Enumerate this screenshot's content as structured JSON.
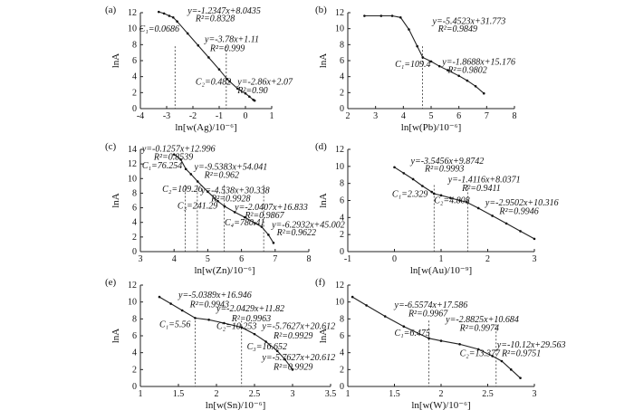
{
  "chart_data": [
    {
      "type": "scatter",
      "panel_label": "(a)",
      "xlabel": "ln[w(Ag)/10⁻⁶]",
      "ylabel": "lnA",
      "xlim": [
        -4,
        1
      ],
      "ylim": [
        0,
        12
      ],
      "xticks": [
        -4,
        -3,
        -2,
        -1,
        0,
        1
      ],
      "yticks": [
        0,
        2,
        4,
        6,
        8,
        10,
        12
      ],
      "series": [
        {
          "x": [
            -3.3,
            -3.1,
            -2.9,
            -2.75,
            -2.6,
            -2.2,
            -1.8,
            -1.4,
            -1.0,
            -0.7,
            -0.6,
            -0.3,
            0.0,
            0.15,
            0.3,
            0.35
          ],
          "y": [
            12.1,
            11.9,
            11.6,
            11.4,
            10.9,
            9.4,
            7.9,
            6.4,
            4.9,
            3.7,
            3.4,
            2.5,
            1.9,
            1.5,
            1.1,
            1.0
          ]
        }
      ],
      "thresholds": [
        -2.68,
        -0.73
      ],
      "annotations": [
        {
          "text": "y=-1.2347x+8.0435",
          "x": -2.2,
          "y": 11.9
        },
        {
          "text": "R²=0.8328",
          "x": -1.9,
          "y": 10.9
        },
        {
          "text": "C₁=0.0686",
          "x": -4.05,
          "y": 9.6
        },
        {
          "text": "y=-3.78x+1.11",
          "x": -1.55,
          "y": 8.3
        },
        {
          "text": "R²=0.999",
          "x": -1.35,
          "y": 7.2
        },
        {
          "text": "C₂=0.482",
          "x": -1.9,
          "y": 3.0
        },
        {
          "text": "y=-2.86x+2.07",
          "x": -0.3,
          "y": 3.0
        },
        {
          "text": "R²=0.90",
          "x": -0.3,
          "y": 1.9
        }
      ]
    },
    {
      "type": "scatter",
      "panel_label": "(b)",
      "xlabel": "ln[w(Pb)/10⁻⁶]",
      "ylabel": "lnA",
      "xlim": [
        2,
        8
      ],
      "ylim": [
        0,
        12
      ],
      "xticks": [
        2,
        3,
        4,
        5,
        6,
        7,
        8
      ],
      "yticks": [
        0,
        2,
        4,
        6,
        8,
        10,
        12
      ],
      "series": [
        {
          "x": [
            2.6,
            3.2,
            3.6,
            3.9,
            4.2,
            4.5,
            4.7,
            5.0,
            5.3,
            5.6,
            6.0,
            6.3,
            6.6,
            6.9
          ],
          "y": [
            11.6,
            11.6,
            11.6,
            11.4,
            9.9,
            7.8,
            6.4,
            5.9,
            5.3,
            4.8,
            4.1,
            3.5,
            2.8,
            1.9
          ]
        }
      ],
      "thresholds": [
        4.69
      ],
      "annotations": [
        {
          "text": "y=-5.4523x+31.773",
          "x": 5.05,
          "y": 10.6
        },
        {
          "text": "R²=0.9849",
          "x": 5.25,
          "y": 9.6
        },
        {
          "text": "C₁=109.4",
          "x": 3.7,
          "y": 5.2
        },
        {
          "text": "y=-1.8688x+15.176",
          "x": 5.4,
          "y": 5.5
        },
        {
          "text": "R²=0.9802",
          "x": 5.6,
          "y": 4.5
        }
      ]
    },
    {
      "type": "scatter",
      "panel_label": "(c)",
      "xlabel": "ln[w(Zn)/10⁻⁶]",
      "ylabel": "lnA",
      "xlim": [
        3,
        8
      ],
      "ylim": [
        0,
        14
      ],
      "xticks": [
        3,
        4,
        5,
        6,
        7,
        8
      ],
      "yticks": [
        0,
        2,
        4,
        6,
        8,
        10,
        12,
        14
      ],
      "series": [
        {
          "x": [
            4.0,
            4.2,
            4.35,
            4.5,
            4.7,
            5.0,
            5.3,
            5.5,
            5.8,
            6.1,
            6.4,
            6.6,
            6.8,
            6.95
          ],
          "y": [
            13.3,
            12.6,
            11.3,
            10.6,
            9.6,
            8.2,
            6.9,
            6.2,
            5.4,
            4.7,
            3.9,
            3.4,
            2.3,
            1.2
          ]
        }
      ],
      "thresholds": [
        4.33,
        4.69,
        5.49,
        6.66
      ],
      "annotations": [
        {
          "text": "y=-0.1257x+12.996",
          "x": 3.05,
          "y": 13.7
        },
        {
          "text": "R²=0.8539",
          "x": 3.4,
          "y": 12.6
        },
        {
          "text": "C₁=76.254",
          "x": 3.05,
          "y": 11.4
        },
        {
          "text": "y=-9.5383x+54.041",
          "x": 4.6,
          "y": 11.2
        },
        {
          "text": "R²=0.962",
          "x": 4.9,
          "y": 10.1
        },
        {
          "text": "C₂=109.26",
          "x": 3.65,
          "y": 8.2
        },
        {
          "text": "y=-4.538x+30.338",
          "x": 4.8,
          "y": 8.0
        },
        {
          "text": "R²=0.9928",
          "x": 5.1,
          "y": 6.9
        },
        {
          "text": "C₃=241.29",
          "x": 4.1,
          "y": 5.9
        },
        {
          "text": "y=-2.0407x+16.833",
          "x": 5.8,
          "y": 5.7
        },
        {
          "text": "R²=0.9867",
          "x": 6.1,
          "y": 4.6
        },
        {
          "text": "C₄=780.41",
          "x": 5.5,
          "y": 3.6
        },
        {
          "text": "y=-6.2932x+45.002",
          "x": 6.9,
          "y": 3.3
        },
        {
          "text": "R²=0.9622",
          "x": 7.05,
          "y": 2.2
        }
      ]
    },
    {
      "type": "scatter",
      "panel_label": "(d)",
      "xlabel": "ln[w(Au)/10⁻⁹]",
      "ylabel": "lnA",
      "xlim": [
        -1,
        3
      ],
      "ylim": [
        0,
        12
      ],
      "xticks": [
        -1,
        0,
        1,
        2,
        3
      ],
      "yticks": [
        0,
        2,
        4,
        6,
        8,
        10,
        12
      ],
      "series": [
        {
          "x": [
            0.0,
            0.2,
            0.4,
            0.6,
            0.8,
            0.85,
            1.0,
            1.2,
            1.4,
            1.55,
            1.8,
            2.1,
            2.4,
            2.7,
            3.0
          ],
          "y": [
            9.9,
            9.2,
            8.5,
            7.7,
            7.0,
            6.8,
            6.6,
            6.3,
            6.0,
            5.8,
            5.1,
            4.2,
            3.3,
            2.4,
            1.5
          ]
        }
      ],
      "thresholds": [
        0.85,
        1.57
      ],
      "annotations": [
        {
          "text": "y=-3.5456x+9.8742",
          "x": 0.35,
          "y": 10.3
        },
        {
          "text": "R²=0.9993",
          "x": 0.65,
          "y": 9.4
        },
        {
          "text": "y=-1.4116x+8.0371",
          "x": 1.15,
          "y": 8.1
        },
        {
          "text": "C₁=2.329",
          "x": -0.05,
          "y": 6.4
        },
        {
          "text": "R²=0.9411",
          "x": 1.45,
          "y": 7.1
        },
        {
          "text": "C₂=4.808",
          "x": 0.85,
          "y": 5.7
        },
        {
          "text": "y=-2.9502x+10.316",
          "x": 1.95,
          "y": 5.4
        },
        {
          "text": "R²=0.9946",
          "x": 2.25,
          "y": 4.4
        }
      ]
    },
    {
      "type": "scatter",
      "panel_label": "(e)",
      "xlabel": "ln[w(Sn)/10⁻⁶]",
      "ylabel": "lnA",
      "xlim": [
        1,
        3.5
      ],
      "ylim": [
        0,
        12
      ],
      "xticks": [
        1,
        1.5,
        2,
        2.5,
        3,
        3.5
      ],
      "yticks": [
        0,
        2,
        4,
        6,
        8,
        10,
        12
      ],
      "series": [
        {
          "x": [
            1.25,
            1.4,
            1.55,
            1.72,
            1.9,
            2.1,
            2.33,
            2.5,
            2.65,
            2.8,
            2.9,
            3.0
          ],
          "y": [
            10.6,
            9.8,
            9.0,
            8.1,
            7.9,
            7.5,
            7.0,
            6.2,
            5.3,
            4.2,
            3.2,
            2.0
          ]
        }
      ],
      "thresholds": [
        1.72,
        2.33
      ],
      "annotations": [
        {
          "text": "y=-5.0389x+16.946",
          "x": 1.5,
          "y": 10.5
        },
        {
          "text": "R²=0.9943",
          "x": 1.65,
          "y": 9.4
        },
        {
          "text": "y=-2.0429x+11.82",
          "x": 2.0,
          "y": 8.9
        },
        {
          "text": "C₁=5.56",
          "x": 1.25,
          "y": 7.0
        },
        {
          "text": "R²=0.9963",
          "x": 2.2,
          "y": 7.7
        },
        {
          "text": "C₂=10.253",
          "x": 2.0,
          "y": 6.8
        },
        {
          "text": "y=-5.7627x+20.612",
          "x": 2.6,
          "y": 6.8
        },
        {
          "text": "R²=0.9929",
          "x": 2.75,
          "y": 5.7
        },
        {
          "text": "C₃=16.652",
          "x": 2.4,
          "y": 4.4
        },
        {
          "text": "y=-5.7627x+20.612",
          "x": 2.6,
          "y": 3.1
        },
        {
          "text": "R²=0.9929",
          "x": 2.75,
          "y": 2.0
        }
      ]
    },
    {
      "type": "scatter",
      "panel_label": "(f)",
      "xlabel": "ln[w(W)/10⁻⁶]",
      "ylabel": "lnA",
      "xlim": [
        1,
        3
      ],
      "ylim": [
        0,
        12
      ],
      "xticks": [
        1,
        1.5,
        2,
        2.5,
        3
      ],
      "yticks": [
        0,
        2,
        4,
        6,
        8,
        10,
        12
      ],
      "series": [
        {
          "x": [
            1.05,
            1.2,
            1.4,
            1.6,
            1.87,
            2.0,
            2.2,
            2.4,
            2.55,
            2.65,
            2.75,
            2.85
          ],
          "y": [
            10.6,
            9.6,
            8.3,
            7.1,
            5.7,
            5.4,
            5.0,
            4.4,
            3.6,
            3.0,
            2.0,
            1.0
          ]
        }
      ],
      "thresholds": [
        1.87,
        2.59
      ],
      "annotations": [
        {
          "text": "y=-6.5574x+17.586",
          "x": 1.5,
          "y": 9.3
        },
        {
          "text": "R²=0.9967",
          "x": 1.65,
          "y": 8.3
        },
        {
          "text": "C₁=6.475",
          "x": 1.5,
          "y": 6.0
        },
        {
          "text": "y=-2.8825x+10.684",
          "x": 2.05,
          "y": 7.6
        },
        {
          "text": "R²=0.9974",
          "x": 2.2,
          "y": 6.6
        },
        {
          "text": "C₂=13.377",
          "x": 2.2,
          "y": 3.6
        },
        {
          "text": "y=-10.12x+29.563",
          "x": 2.6,
          "y": 4.6
        },
        {
          "text": "R²=0.9751",
          "x": 2.65,
          "y": 3.6
        }
      ]
    }
  ]
}
